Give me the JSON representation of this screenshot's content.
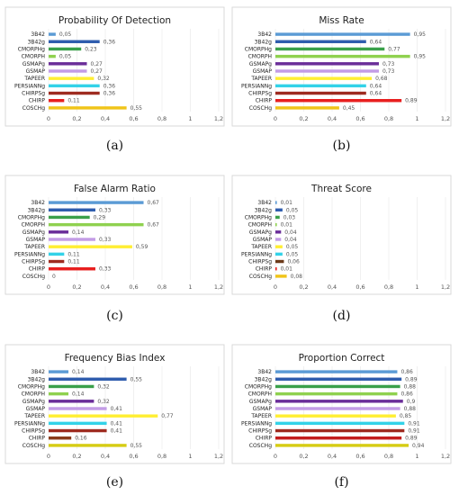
{
  "colors": [
    "#5b9bd5",
    "#2f5dae",
    "#3aa04a",
    "#8fd14f",
    "#6a2d99",
    "#c39ce6",
    "#ffee33",
    "#33d2e8",
    "#9e2b20",
    "#e81f1f",
    "#f0c419"
  ],
  "chart_data": [
    {
      "type": "bar",
      "orientation": "horizontal",
      "title": "Probability Of Detection",
      "caption": "(a)",
      "categories": [
        "3B42",
        "3B42g",
        "CMORPHg",
        "CMORPH",
        "GSMAPg",
        "GSMAP",
        "TAPEER",
        "PERSIANNg",
        "CHIRPSg",
        "CHIRP",
        "COSCHg"
      ],
      "values": [
        0.05,
        0.36,
        0.23,
        0.05,
        0.27,
        0.27,
        0.32,
        0.36,
        0.36,
        0.11,
        0.55
      ],
      "value_labels": [
        "0,05",
        "0,36",
        "0,23",
        "0,05",
        "0,27",
        "0,27",
        "0,32",
        "0,36",
        "0,36",
        "0,11",
        "0,55"
      ],
      "xticks": [
        "0",
        "0,2",
        "0,4",
        "0,6",
        "0,8",
        "1",
        "1,2"
      ],
      "xlim": [
        0,
        1.2
      ],
      "colors": [
        "#5b9bd5",
        "#2f5dae",
        "#3aa04a",
        "#8fd14f",
        "#6a2d99",
        "#c39ce6",
        "#ffee33",
        "#33d2e8",
        "#9e2b20",
        "#e81f1f",
        "#f0c419"
      ]
    },
    {
      "type": "bar",
      "orientation": "horizontal",
      "title": "Miss Rate",
      "caption": "(b)",
      "categories": [
        "3B42",
        "3B42g",
        "CMORPHg",
        "CMORPH",
        "GSMAPg",
        "GSMAP",
        "TAPEER",
        "PERSIANNg",
        "CHIRPSg",
        "CHIRP",
        "COSCHg"
      ],
      "values": [
        0.95,
        0.64,
        0.77,
        0.95,
        0.73,
        0.73,
        0.68,
        0.64,
        0.64,
        0.89,
        0.45
      ],
      "value_labels": [
        "0,95",
        "0,64",
        "0,77",
        "0,95",
        "0,73",
        "0,73",
        "0,68",
        "0,64",
        "0,64",
        "0,89",
        "0,45"
      ],
      "xticks": [
        "0",
        "0,2",
        "0,4",
        "0,6",
        "0,8",
        "1",
        "1,2"
      ],
      "xlim": [
        0,
        1.2
      ],
      "colors": [
        "#5b9bd5",
        "#2f5dae",
        "#3aa04a",
        "#8fd14f",
        "#6a2d99",
        "#c39ce6",
        "#ffee33",
        "#33d2e8",
        "#9e2b20",
        "#e81f1f",
        "#f0c419"
      ]
    },
    {
      "type": "bar",
      "orientation": "horizontal",
      "title": "False Alarm Ratio",
      "caption": "(c)",
      "categories": [
        "3B42",
        "3B42g",
        "CMORPHg",
        "CMORPH",
        "GSMAPg",
        "GSMAP",
        "TAPEER",
        "PERSIANNg",
        "CHIRPSg",
        "CHIRP",
        "COSCHg"
      ],
      "values": [
        0.67,
        0.33,
        0.29,
        0.67,
        0.14,
        0.33,
        0.59,
        0.11,
        0.11,
        0.33,
        0
      ],
      "value_labels": [
        "0,67",
        "0,33",
        "0,29",
        "0,67",
        "0,14",
        "0,33",
        "0,59",
        "0,11",
        "0,11",
        "0,33",
        "0"
      ],
      "xticks": [
        "0",
        "0,2",
        "0,4",
        "0,6",
        "0,8",
        "1",
        "1,2"
      ],
      "xlim": [
        0,
        1.2
      ],
      "colors": [
        "#5b9bd5",
        "#2f5dae",
        "#3aa04a",
        "#8fd14f",
        "#6a2d99",
        "#c39ce6",
        "#ffee33",
        "#33d2e8",
        "#9e2b20",
        "#e81f1f",
        "#f0c419"
      ]
    },
    {
      "type": "bar",
      "orientation": "horizontal",
      "title": "Threat Score",
      "caption": "(d)",
      "categories": [
        "3B42",
        "3B42g",
        "CMORPHg",
        "CMORPH",
        "GSMAPg",
        "GSMAP",
        "TAPEER",
        "PERSIANNg",
        "CHIRPSg",
        "CHIRP",
        "COSCHg"
      ],
      "values": [
        0.01,
        0.05,
        0.03,
        0.01,
        0.04,
        0.04,
        0.05,
        0.05,
        0.06,
        0.01,
        0.08
      ],
      "value_labels": [
        "0,01",
        "0,05",
        "0,03",
        "0,01",
        "0,04",
        "0,04",
        "0,05",
        "0,05",
        "0,06",
        "0,01",
        "0,08"
      ],
      "xticks": [
        "0",
        "0,2",
        "0,4",
        "0,6",
        "0,8",
        "1",
        "1,2"
      ],
      "xlim": [
        0,
        1.2
      ],
      "colors": [
        "#5b9bd5",
        "#2f5dae",
        "#3aa04a",
        "#8fd14f",
        "#6a2d99",
        "#c39ce6",
        "#ffee33",
        "#33d2e8",
        "#6b3a1a",
        "#e81f1f",
        "#f0c419"
      ]
    },
    {
      "type": "bar",
      "orientation": "horizontal",
      "title": "Frequency Bias Index",
      "caption": "(e)",
      "categories": [
        "3B42",
        "3B42g",
        "CMORPHg",
        "CMORPH",
        "GSMAPg",
        "GSMAP",
        "TAPEER",
        "PERSIANNg",
        "CHIRPSg",
        "CHIRP",
        "COSCHg"
      ],
      "values": [
        0.14,
        0.55,
        0.32,
        0.14,
        0.32,
        0.41,
        0.77,
        0.41,
        0.41,
        0.16,
        0.55
      ],
      "value_labels": [
        "0,14",
        "0,55",
        "0,32",
        "0,14",
        "0,32",
        "0,41",
        "0,77",
        "0,41",
        "0,41",
        "0,16",
        "0,55"
      ],
      "xticks": [
        "0",
        "0,2",
        "0,4",
        "0,6",
        "0,8",
        "1",
        "1,2"
      ],
      "xlim": [
        0,
        1.2
      ],
      "colors": [
        "#5b9bd5",
        "#2f5dae",
        "#3aa04a",
        "#8fd14f",
        "#6a2d99",
        "#c39ce6",
        "#ffee33",
        "#33d2e8",
        "#9e2b20",
        "#8a3a1a",
        "#d6cc14"
      ]
    },
    {
      "type": "bar",
      "orientation": "horizontal",
      "title": "Proportion Correct",
      "caption": "(f)",
      "categories": [
        "3B42",
        "3B42g",
        "CMORPHg",
        "CMORPH",
        "GSMAPg",
        "GSMAP",
        "TAPEER",
        "PERSIANNg",
        "CHIRPSg",
        "CHIRP",
        "COSCHg"
      ],
      "values": [
        0.86,
        0.89,
        0.88,
        0.86,
        0.9,
        0.88,
        0.85,
        0.91,
        0.91,
        0.89,
        0.94
      ],
      "value_labels": [
        "0,86",
        "0,89",
        "0,88",
        "0,86",
        "0,9",
        "0,88",
        "0,85",
        "0,91",
        "0,91",
        "0,89",
        "0,94"
      ],
      "xticks": [
        "0",
        "0,2",
        "0,4",
        "0,6",
        "0,8",
        "1",
        "1,2"
      ],
      "xlim": [
        0,
        1.2
      ],
      "colors": [
        "#5b9bd5",
        "#2f5dae",
        "#3aa04a",
        "#8fd14f",
        "#6a2d99",
        "#c39ce6",
        "#ffee33",
        "#33d2e8",
        "#9e2b20",
        "#c41d1d",
        "#d6cc14"
      ]
    }
  ]
}
